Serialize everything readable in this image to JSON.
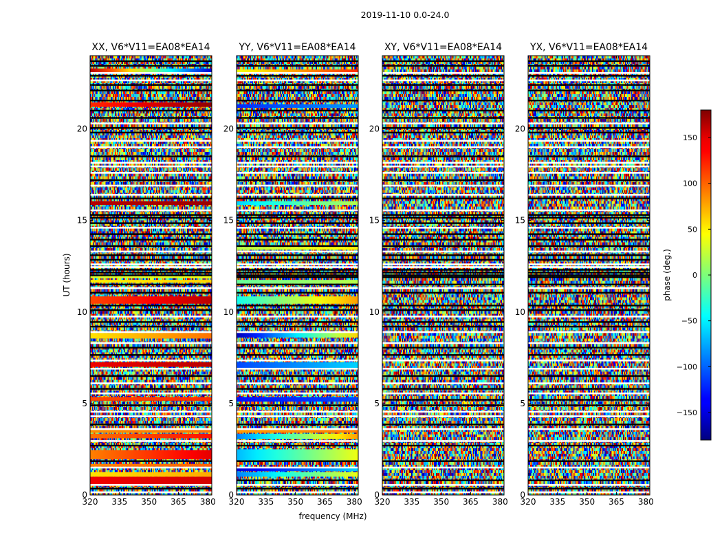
{
  "figure": {
    "suptitle": "2019-11-10 0.0-24.0",
    "xlabel": "frequency (MHz)",
    "ylabel": "UT (hours)"
  },
  "chart_data": {
    "type": "heatmap",
    "title": "2019-11-10 0.0-24.0",
    "xlabel": "frequency (MHz)",
    "ylabel": "UT (hours)",
    "xlim": [
      320,
      382
    ],
    "ylim": [
      0,
      24
    ],
    "xticks": [
      320,
      335,
      350,
      365,
      380
    ],
    "yticks": [
      0,
      5,
      10,
      15,
      20
    ],
    "colorbar": {
      "label": "phase (deg.)",
      "range": [
        -180,
        180
      ],
      "ticks": [
        150,
        100,
        50,
        0,
        -50,
        -100,
        -150
      ],
      "tick_labels": [
        "150",
        "100",
        "50",
        "0",
        "−50",
        "−100",
        "−150"
      ],
      "colormap": "jet"
    },
    "panels": [
      {
        "title": "XX, V6*V11=EA08*EA14",
        "coherent_bands": [
          {
            "t0": 0.5,
            "t1": 1.0,
            "phase_start": 140,
            "phase_end": 150
          },
          {
            "t0": 1.0,
            "t1": 1.25,
            "phase_start": 55,
            "phase_end": 75
          },
          {
            "t0": 1.55,
            "t1": 1.7,
            "phase_start": 90,
            "phase_end": 100
          },
          {
            "t0": 1.95,
            "t1": 2.45,
            "phase_start": 90,
            "phase_end": 145
          },
          {
            "t0": 3.1,
            "t1": 3.35,
            "phase_start": 95,
            "phase_end": 130
          },
          {
            "t0": 3.4,
            "t1": 3.55,
            "phase_start": 85,
            "phase_end": 95
          },
          {
            "t0": 5.15,
            "t1": 5.35,
            "phase_start": 110,
            "phase_end": 120
          },
          {
            "t0": 7.0,
            "t1": 7.25,
            "phase_start": 140,
            "phase_end": 160
          },
          {
            "t0": 8.55,
            "t1": 8.85,
            "phase_start": 55,
            "phase_end": 95
          },
          {
            "t0": 10.45,
            "t1": 10.85,
            "phase_start": 110,
            "phase_end": 160
          },
          {
            "t0": 11.6,
            "t1": 11.75,
            "phase_start": 50,
            "phase_end": 60
          },
          {
            "t0": 11.85,
            "t1": 11.95,
            "phase_start": 30,
            "phase_end": 40
          },
          {
            "t0": 15.85,
            "t1": 16.05,
            "phase_start": 160,
            "phase_end": 170
          },
          {
            "t0": 21.2,
            "t1": 21.45,
            "phase_start": 120,
            "phase_end": 175
          },
          {
            "t0": 23.1,
            "t1": 23.3,
            "phase_start": 160,
            "phase_end": -150
          }
        ]
      },
      {
        "title": "YY, V6*V11=EA08*EA14",
        "coherent_bands": [
          {
            "t0": 1.0,
            "t1": 1.25,
            "phase_start": -90,
            "phase_end": 40
          },
          {
            "t0": 1.3,
            "t1": 1.5,
            "phase_start": -150,
            "phase_end": -60
          },
          {
            "t0": 1.9,
            "t1": 2.5,
            "phase_start": -70,
            "phase_end": 40
          },
          {
            "t0": 3.05,
            "t1": 3.35,
            "phase_start": -90,
            "phase_end": 80
          },
          {
            "t0": 3.4,
            "t1": 3.55,
            "phase_start": 80,
            "phase_end": 90
          },
          {
            "t0": 5.1,
            "t1": 5.35,
            "phase_start": -130,
            "phase_end": -110
          },
          {
            "t0": 6.95,
            "t1": 7.25,
            "phase_start": -110,
            "phase_end": -60
          },
          {
            "t0": 8.6,
            "t1": 8.9,
            "phase_start": -160,
            "phase_end": 60
          },
          {
            "t0": 10.45,
            "t1": 10.85,
            "phase_start": -40,
            "phase_end": 80
          },
          {
            "t0": 11.55,
            "t1": 11.75,
            "phase_start": -10,
            "phase_end": 20
          },
          {
            "t0": 13.4,
            "t1": 13.55,
            "phase_start": 20,
            "phase_end": 50
          },
          {
            "t0": 15.85,
            "t1": 16.05,
            "phase_start": -60,
            "phase_end": 20
          },
          {
            "t0": 21.15,
            "t1": 21.35,
            "phase_start": -120,
            "phase_end": -80
          },
          {
            "t0": 23.05,
            "t1": 23.25,
            "phase_start": 40,
            "phase_end": 120
          }
        ]
      },
      {
        "title": "XY, V6*V11=EA08*EA14",
        "coherent_bands": []
      },
      {
        "title": "YX, V6*V11=EA08*EA14",
        "coherent_bands": []
      }
    ],
    "flagged_white_hours": [
      0.15,
      0.55,
      1.5,
      2.95,
      3.6,
      4.3,
      4.55,
      5.55,
      6.1,
      6.9,
      7.35,
      8.3,
      8.9,
      9.75,
      11.3,
      12.45,
      12.6,
      13.3,
      14.6,
      15.55,
      16.4,
      16.9,
      17.6,
      17.95,
      18.15,
      19.0,
      19.35,
      20.3,
      22.65,
      23.05
    ],
    "flagged_black_hours": [
      0.35,
      0.8,
      1.85,
      2.7,
      3.85,
      4.9,
      5.2,
      5.8,
      6.5,
      7.65,
      8.05,
      9.2,
      9.45,
      10.1,
      10.35,
      11.05,
      11.5,
      11.9,
      12.0,
      12.15,
      12.3,
      12.85,
      13.1,
      13.6,
      13.95,
      14.25,
      14.85,
      15.15,
      15.3,
      16.2,
      17.2,
      18.5,
      19.8,
      20.05,
      20.6,
      21.0,
      21.55,
      22.1,
      22.4,
      22.9,
      23.45,
      23.7
    ]
  }
}
